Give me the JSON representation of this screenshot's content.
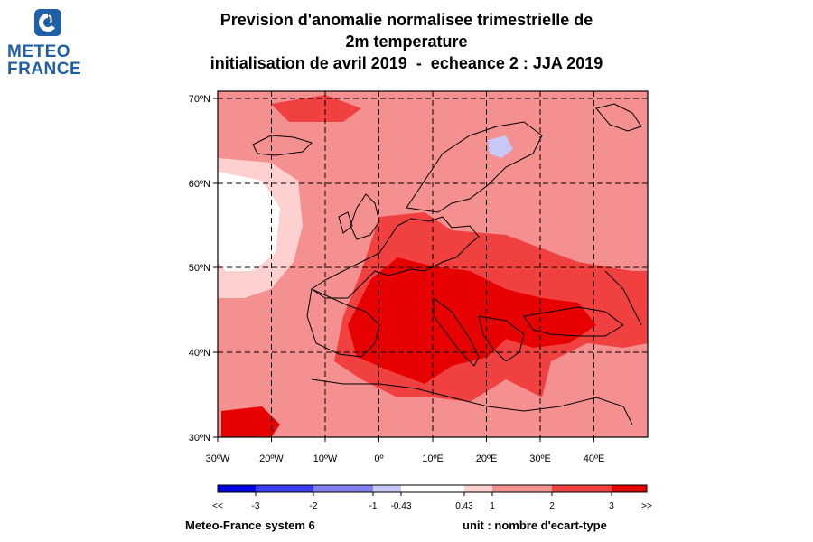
{
  "logo": {
    "line1": "METEO",
    "line2": "FRANCE",
    "brand_color": "#1f5fa8"
  },
  "title": {
    "line1": "Prevision d'anomalie normalisee trimestrielle de",
    "line2": "2m temperature",
    "line3": "initialisation de avril 2019  -  echeance 2 : JJA 2019"
  },
  "map": {
    "lat_labels": [
      "70ºN",
      "60ºN",
      "50ºN",
      "40ºN",
      "30ºN"
    ],
    "lon_labels": [
      "30ºW",
      "20ºW",
      "10ºW",
      "0º",
      "10ºE",
      "20ºE",
      "30ºE",
      "40ºE"
    ],
    "extent": {
      "lon": [
        -30,
        50
      ],
      "lat": [
        30,
        71
      ]
    },
    "grid_lons": [
      -20,
      -10,
      0,
      10,
      20,
      30,
      40
    ],
    "grid_lats": [
      40,
      50,
      60,
      70
    ]
  },
  "colorbar": {
    "labels": [
      "<<",
      "-3",
      "-2",
      "-1",
      "-0.43",
      "0.43",
      "1",
      "2",
      "3",
      ">>"
    ],
    "colors": [
      "#0000e0",
      "#3c3cf0",
      "#8080f0",
      "#c8c8f8",
      "#ffffff",
      "#ffd0d0",
      "#f59090",
      "#f04040",
      "#e60000"
    ]
  },
  "footer": {
    "left": "Meteo-France system 6",
    "right": "unit : nombre d'ecart-type"
  }
}
